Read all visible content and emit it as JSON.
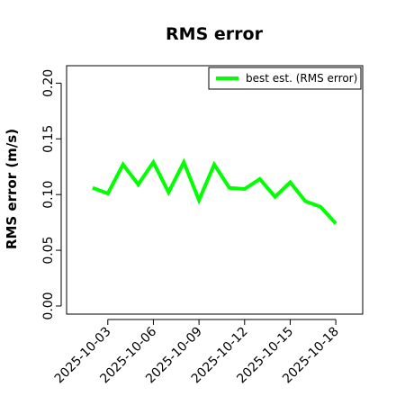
{
  "chart_data": {
    "type": "line",
    "title": "RMS error",
    "xlabel": "",
    "ylabel": "RMS error (m/s)",
    "ylim": [
      0.0,
      0.21
    ],
    "yticks": [
      "0.00",
      "0.05",
      "0.10",
      "0.15",
      "0.20"
    ],
    "xlim": [
      "2025-10-01",
      "2025-10-19"
    ],
    "xticks": [
      {
        "label": "2025-10-03",
        "color": "#000000"
      },
      {
        "label": "2025-10-06",
        "color": "#000000"
      },
      {
        "label": "2025-10-09",
        "color": "#2e8b22"
      },
      {
        "label": "2025-10-12",
        "color": "#000000"
      },
      {
        "label": "2025-10-15",
        "color": "#000000"
      },
      {
        "label": "2025-10-18",
        "color": "#000000"
      }
    ],
    "grid": false,
    "legend_position": "top-right",
    "series": [
      {
        "name": "best est. (RMS error)",
        "color": "#00ff00",
        "x": [
          "2025-10-02",
          "2025-10-03",
          "2025-10-04",
          "2025-10-05",
          "2025-10-06",
          "2025-10-07",
          "2025-10-08",
          "2025-10-09",
          "2025-10-10",
          "2025-10-11",
          "2025-10-12",
          "2025-10-13",
          "2025-10-14",
          "2025-10-15",
          "2025-10-16",
          "2025-10-17",
          "2025-10-18"
        ],
        "y": [
          0.106,
          0.101,
          0.127,
          0.109,
          0.129,
          0.102,
          0.129,
          0.095,
          0.127,
          0.106,
          0.105,
          0.114,
          0.098,
          0.111,
          0.094,
          0.089,
          0.074
        ]
      }
    ]
  }
}
